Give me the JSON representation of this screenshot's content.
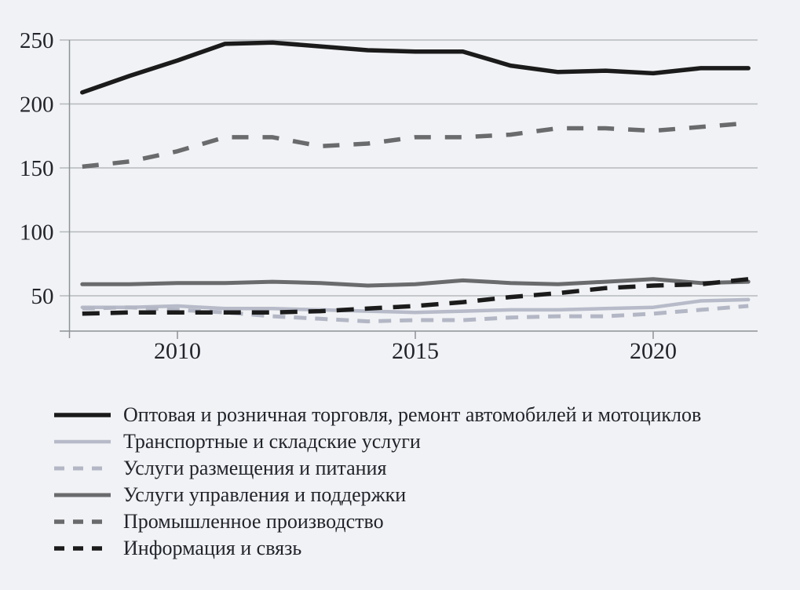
{
  "figure": {
    "background_color": "#f1f2f5",
    "text_color": "#21242b",
    "axis_color": "#8e9196",
    "grid_color": "#b6b9bd"
  },
  "chart_data": {
    "type": "line",
    "title": "",
    "xlabel": "",
    "ylabel": "",
    "x": [
      2008,
      2009,
      2010,
      2011,
      2012,
      2013,
      2014,
      2015,
      2016,
      2017,
      2018,
      2019,
      2020,
      2021,
      2022
    ],
    "xticks": [
      2010,
      2015,
      2020
    ],
    "yticks": [
      250,
      200,
      150,
      100,
      50
    ],
    "ylim": [
      22,
      250
    ],
    "grid": "horizontal",
    "legend_position": "below-left",
    "series": [
      {
        "name": "Оптовая и розничная торговля, ремонт автомобилей и мотоциклов",
        "color": "#1b1b1b",
        "style": "solid",
        "width": 5.5,
        "dash": "",
        "legend_dash": "",
        "values": [
          209,
          222,
          234,
          247,
          248,
          245,
          242,
          241,
          241,
          230,
          225,
          226,
          224,
          228,
          228
        ]
      },
      {
        "name": "Транспортные и складские услуги",
        "color": "#b7bbc9",
        "style": "solid",
        "width": 4.5,
        "dash": "",
        "legend_dash": "",
        "values": [
          41,
          41,
          42,
          40,
          40,
          39,
          38,
          37,
          38,
          39,
          39,
          40,
          41,
          46,
          47
        ]
      },
      {
        "name": "Услуги размещения и питания",
        "color": "#b3b7c5",
        "style": "dashed",
        "width": 5,
        "dash": "16 11",
        "legend_dash": "13 11",
        "values": [
          40,
          41,
          39,
          37,
          34,
          32,
          30,
          31,
          31,
          33,
          34,
          34,
          36,
          39,
          42
        ]
      },
      {
        "name": "Услуги управления и поддержки",
        "color": "#6a6b6d",
        "style": "solid",
        "width": 5,
        "dash": "",
        "legend_dash": "",
        "values": [
          59,
          59,
          60,
          60,
          61,
          60,
          58,
          59,
          62,
          60,
          59,
          61,
          63,
          60,
          61
        ]
      },
      {
        "name": "Промышленное производство",
        "color": "#6a6b6d",
        "style": "dashed",
        "width": 5.5,
        "dash": "21 18",
        "legend_dash": "13 11",
        "values": [
          151,
          155,
          163,
          174,
          174,
          167,
          169,
          174,
          174,
          176,
          181,
          181,
          179,
          182,
          185
        ]
      },
      {
        "name": "Информация и связь",
        "color": "#1b1b1b",
        "style": "dashed",
        "width": 5.5,
        "dash": "22 14",
        "legend_dash": "13 11",
        "values": [
          36,
          37,
          37,
          37,
          37,
          38,
          40,
          42,
          45,
          49,
          52,
          56,
          58,
          59,
          63
        ]
      }
    ]
  }
}
